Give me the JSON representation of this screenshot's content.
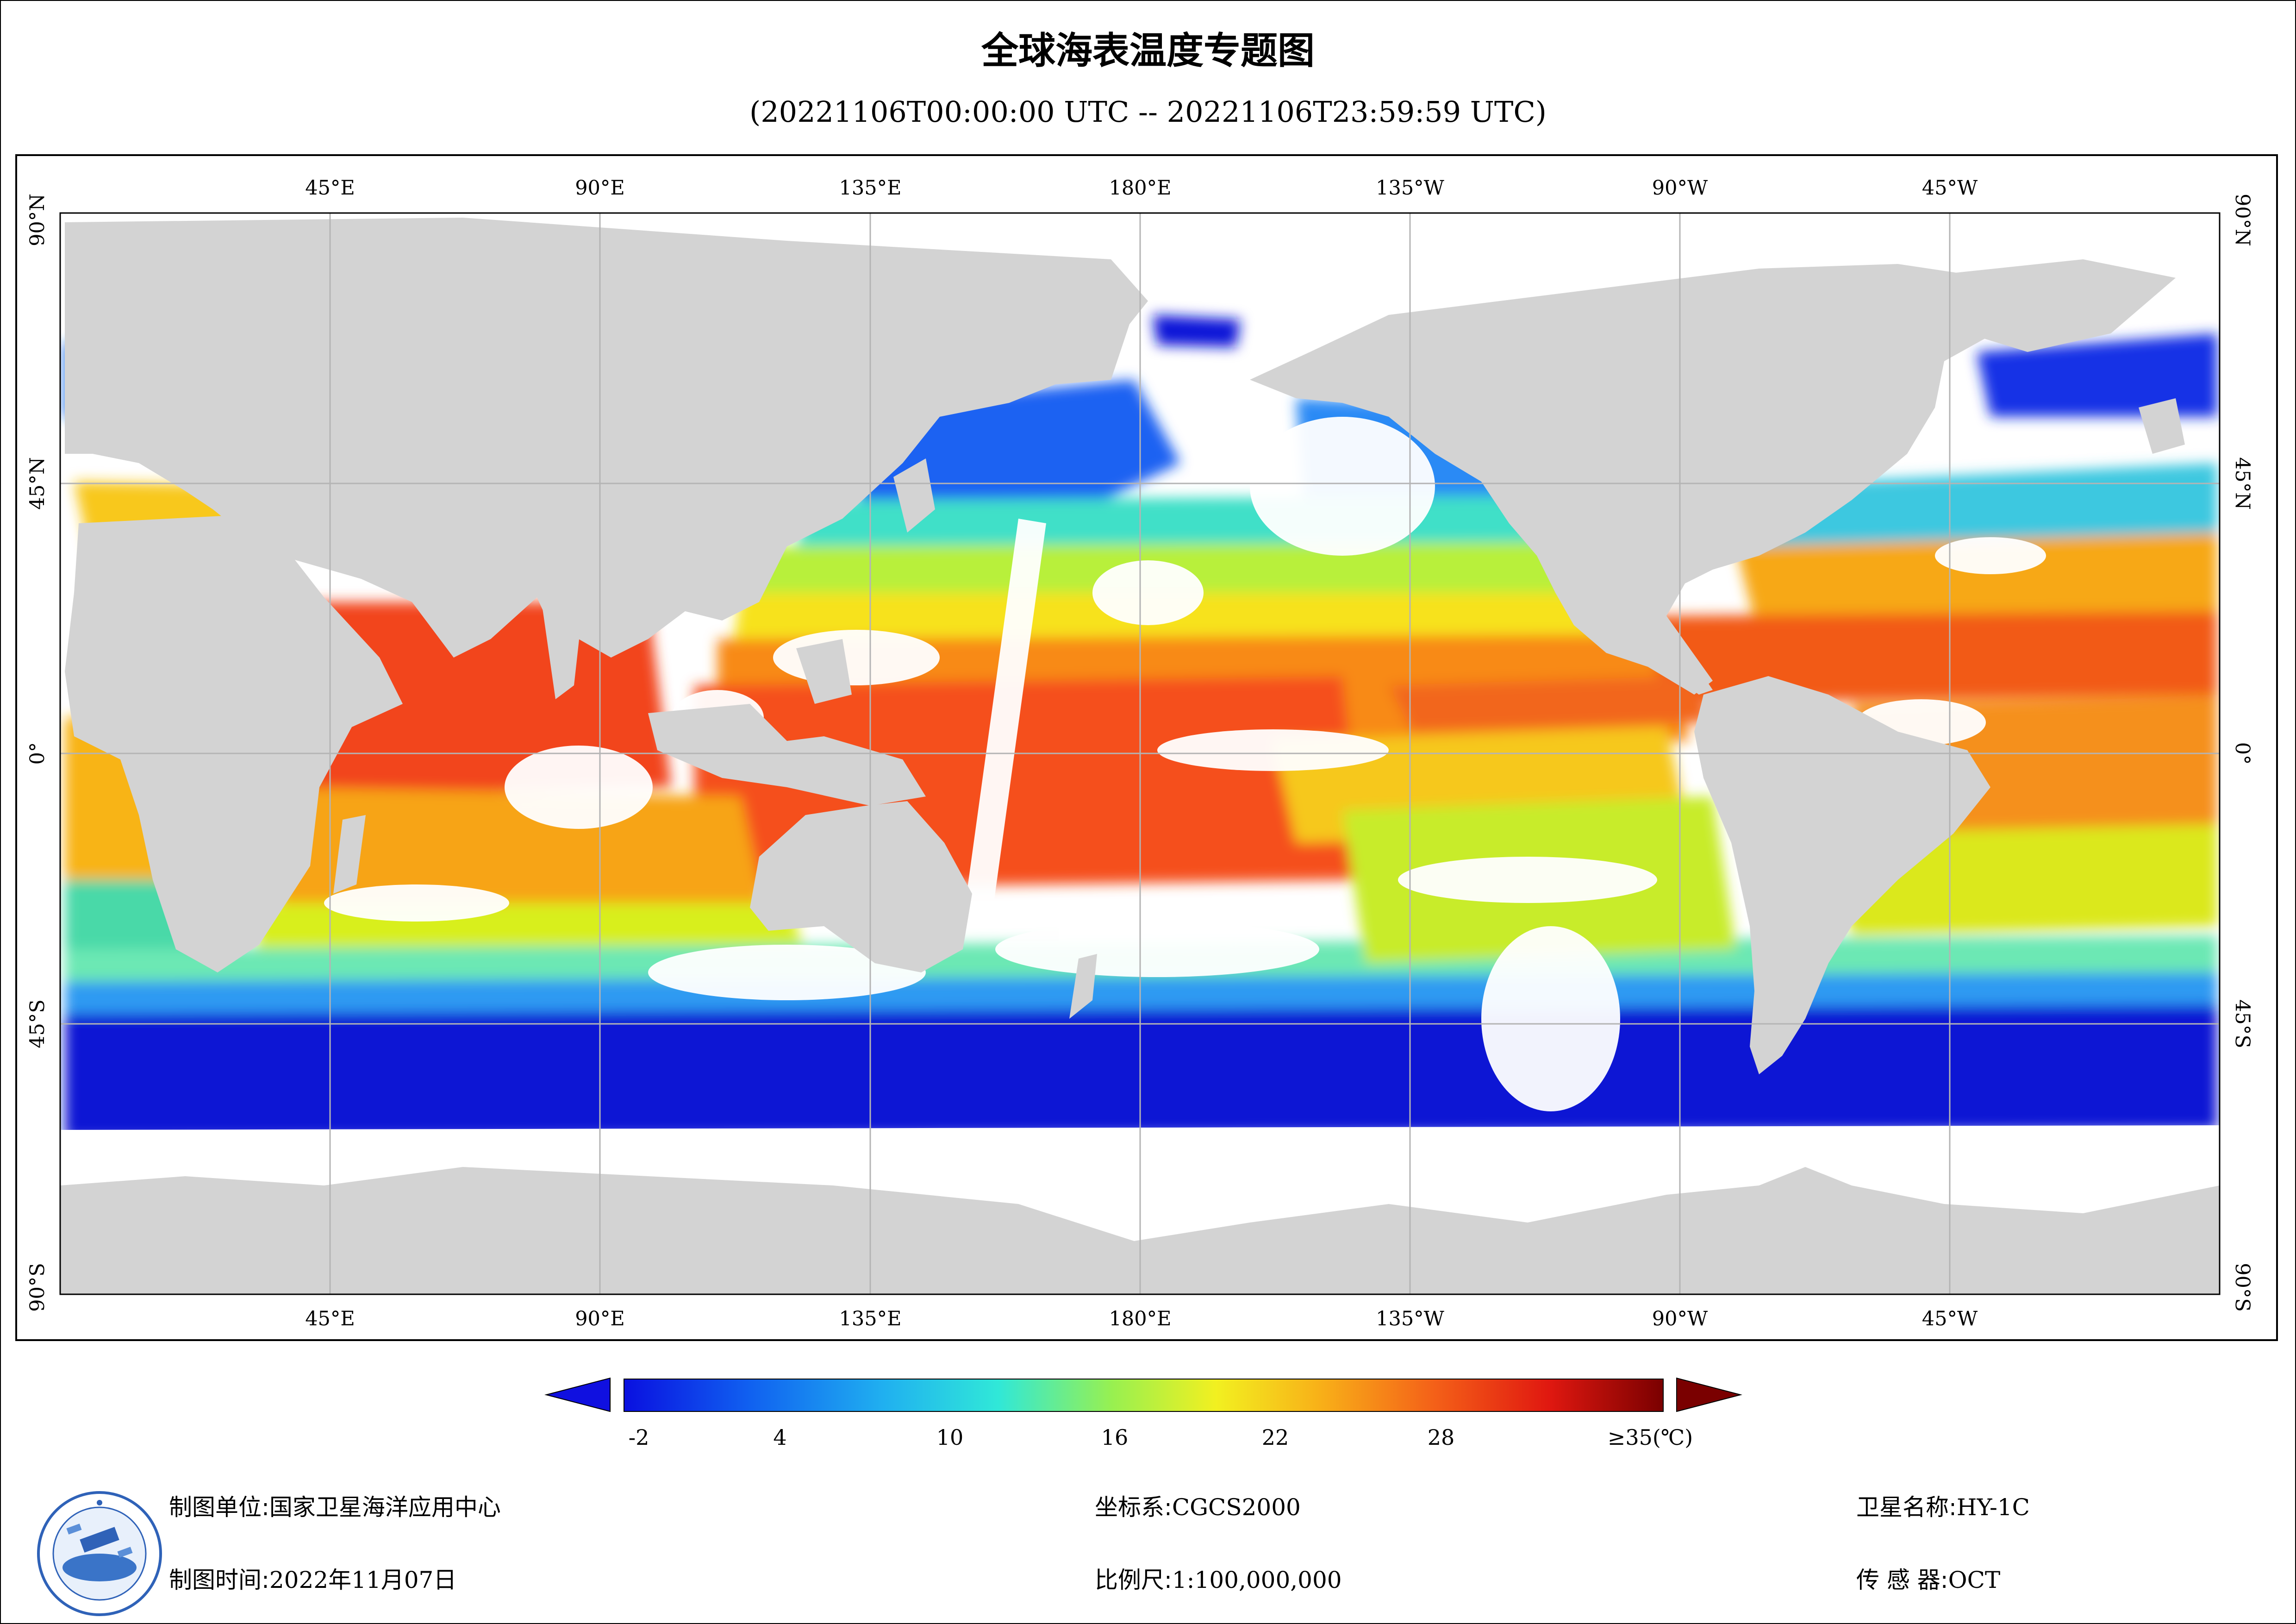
{
  "header": {
    "title": "全球海表温度专题图",
    "time_range": "(20221106T00:00:00 UTC -- 20221106T23:59:59 UTC)"
  },
  "map": {
    "top_lon_labels": [
      "45°E",
      "90°E",
      "135°E",
      "180°E",
      "135°W",
      "90°W",
      "45°W"
    ],
    "bottom_lon_labels": [
      "45°E",
      "90°E",
      "135°E",
      "180°E",
      "135°W",
      "90°W",
      "45°W"
    ],
    "left_lat_labels": [
      "90°N",
      "45°N",
      "0°",
      "45°S",
      "90°S"
    ],
    "right_lat_labels": [
      "90°N",
      "45°N",
      "0°",
      "45°S",
      "90°S"
    ],
    "land_color": "#d3d3d3",
    "no_data_color": "#ffffff",
    "grid_color": "#b4b4b4"
  },
  "colorbar": {
    "ticks": [
      "-2",
      "4",
      "10",
      "16",
      "22",
      "28",
      "≥35(℃)"
    ],
    "min_color": "#1010e0",
    "max_color": "#7a0000"
  },
  "footer": {
    "unit_label": "制图单位:",
    "unit_value": "国家卫星海洋应用中心",
    "time_label": "制图时间:",
    "time_value": "2022年11月07日",
    "crs_label": "坐标系:",
    "crs_value": "CGCS2000",
    "scale_label": "比例尺:",
    "scale_value": "1:100,000,000",
    "satellite_label": "卫星名称:",
    "satellite_value": "HY-1C",
    "sensor_label": "传 感 器:",
    "sensor_value": "OCT"
  },
  "logo": {
    "icon": "nsoas-logo-icon"
  }
}
